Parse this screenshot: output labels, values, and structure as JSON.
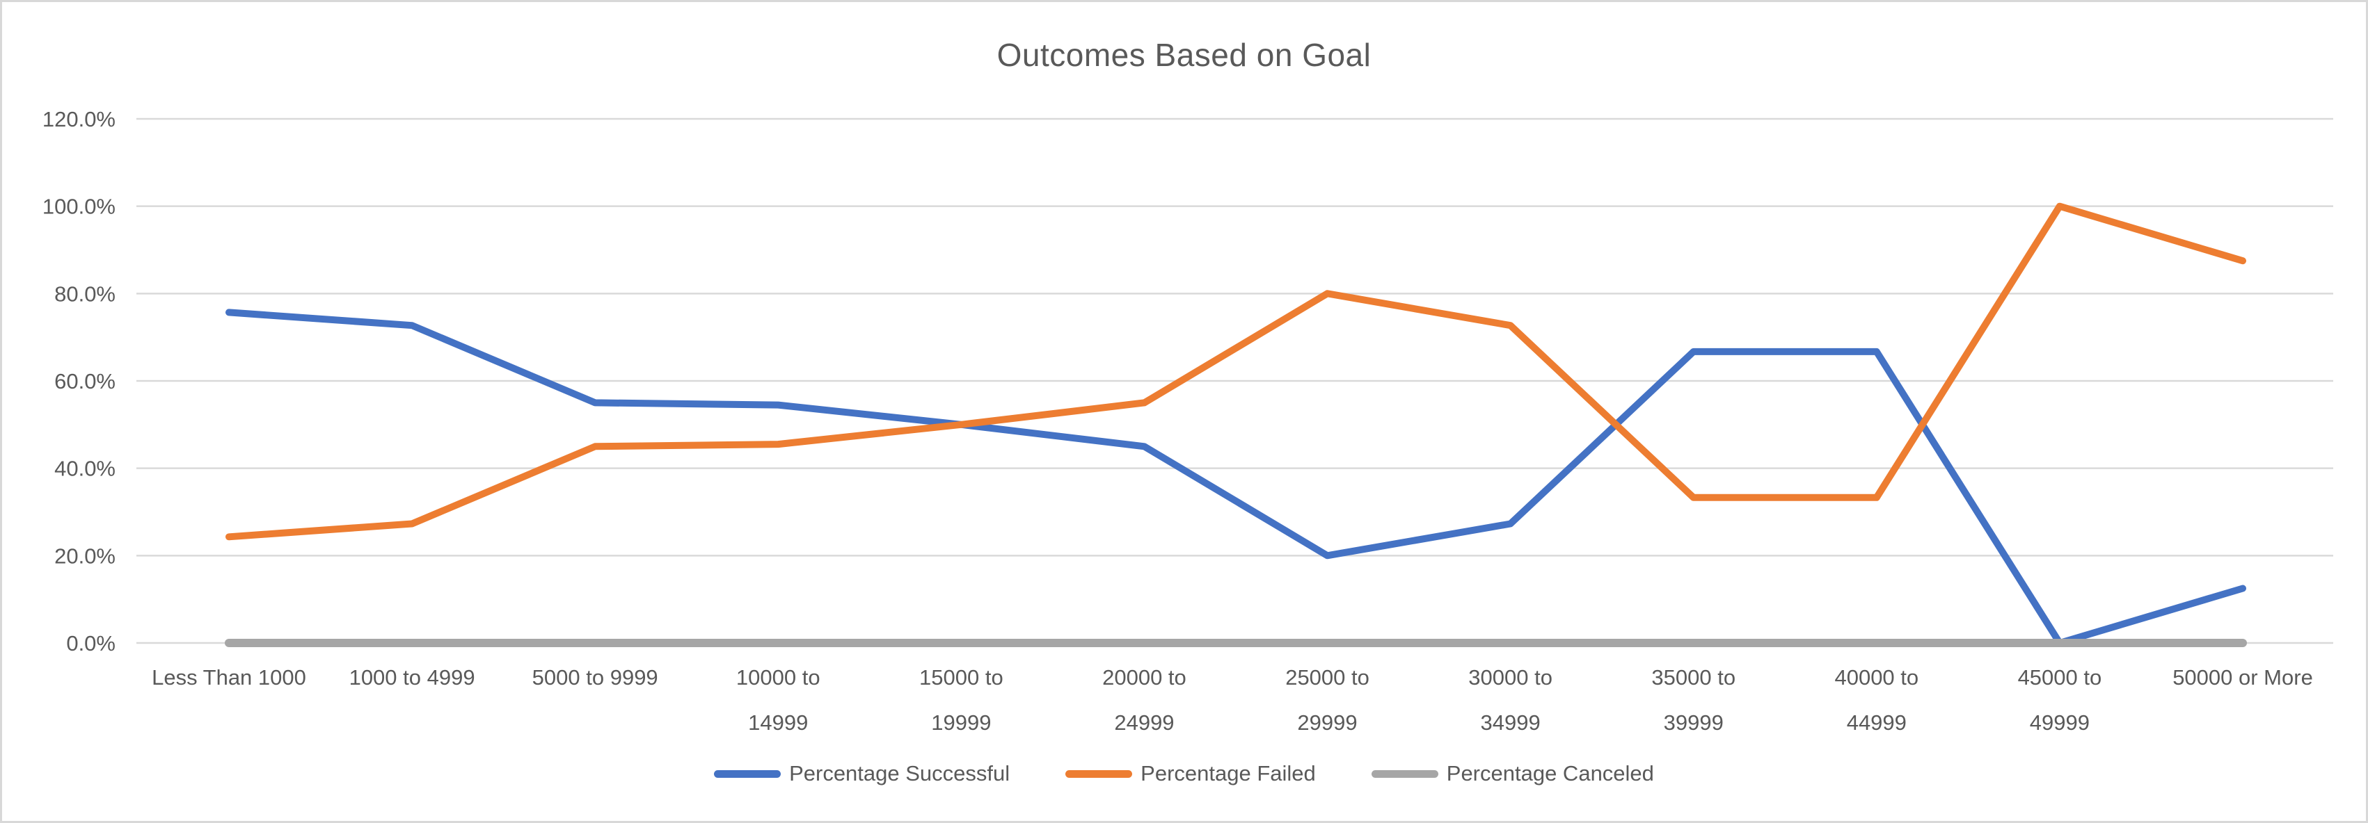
{
  "chart_data": {
    "type": "line",
    "title": "Outcomes Based on Goal",
    "categories": [
      "Less Than 1000",
      "1000 to 4999",
      "5000 to 9999",
      "10000 to\n14999",
      "15000 to\n19999",
      "20000 to\n24999",
      "25000 to\n29999",
      "30000 to\n34999",
      "35000 to\n39999",
      "40000 to\n44999",
      "45000 to\n49999",
      "50000 or More"
    ],
    "series": [
      {
        "name": "Percentage Successful",
        "color": "#4472C4",
        "values": [
          75.7,
          72.7,
          55.0,
          54.5,
          50.0,
          45.0,
          20.0,
          27.3,
          66.7,
          66.7,
          0.0,
          12.5
        ]
      },
      {
        "name": "Percentage Failed",
        "color": "#ED7D31",
        "values": [
          24.3,
          27.3,
          45.0,
          45.5,
          50.0,
          55.0,
          80.0,
          72.7,
          33.3,
          33.3,
          100.0,
          87.5
        ]
      },
      {
        "name": "Percentage Canceled",
        "color": "#A6A6A6",
        "values": [
          0.0,
          0.0,
          0.0,
          0.0,
          0.0,
          0.0,
          0.0,
          0.0,
          0.0,
          0.0,
          0.0,
          0.0
        ]
      }
    ],
    "ylim": [
      0,
      120
    ],
    "ytick_step": 20,
    "ytick_labels": [
      "0.0%",
      "20.0%",
      "40.0%",
      "60.0%",
      "80.0%",
      "100.0%",
      "120.0%"
    ],
    "grid": true,
    "legend_position": "bottom",
    "colors": {
      "gridline": "#D9D9D9",
      "axis_text": "#595959",
      "title_text": "#595959",
      "chart_border": "#D8D8D8",
      "background": "#FFFFFF"
    }
  }
}
